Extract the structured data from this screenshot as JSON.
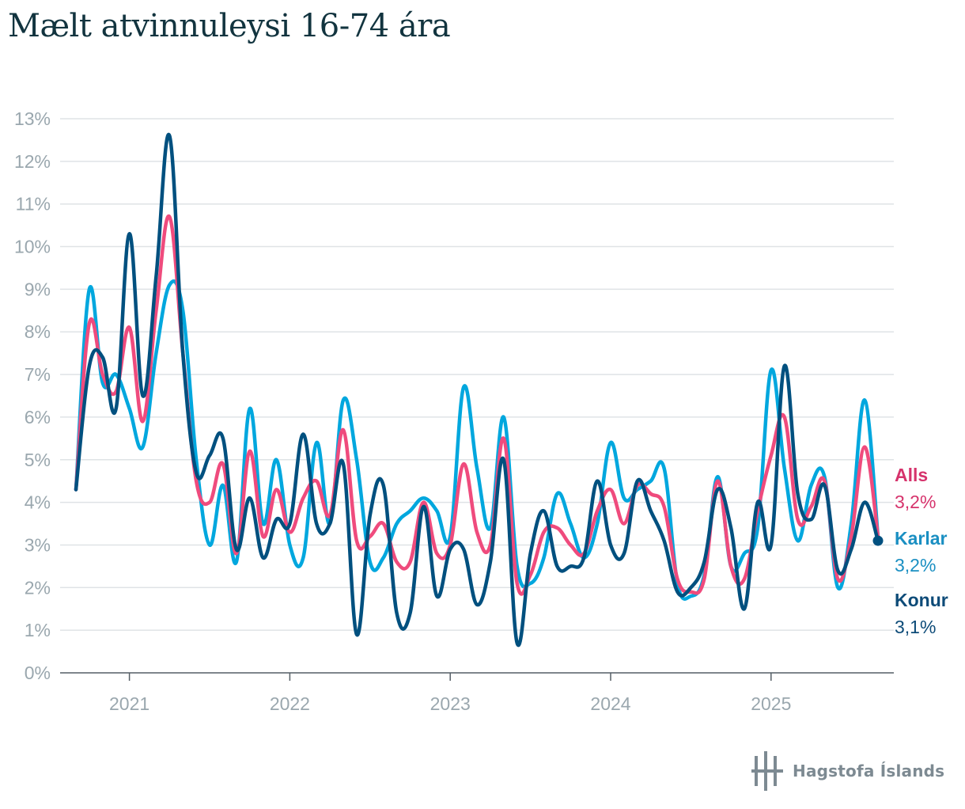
{
  "title": "Mælt atvinnuleysi 16-74 ára",
  "brand": {
    "name": "Hagstofa Íslands",
    "logo_icon": "hagstofa-logo-icon"
  },
  "chart_data": {
    "type": "line",
    "title": "Mælt atvinnuleysi 16-74 ára",
    "xlabel": "",
    "ylabel": "",
    "ylim": [
      0,
      13
    ],
    "y_ticks": [
      0,
      1,
      2,
      3,
      4,
      5,
      6,
      7,
      8,
      9,
      10,
      11,
      12,
      13
    ],
    "y_tick_labels": [
      "0%",
      "1%",
      "2%",
      "3%",
      "4%",
      "5%",
      "6%",
      "7%",
      "8%",
      "9%",
      "10%",
      "11%",
      "12%",
      "13%"
    ],
    "x_tick_labels": [
      "2021",
      "2022",
      "2023",
      "2024",
      "2025"
    ],
    "x_start": "2020-09",
    "grid": "horizontal",
    "legend": "right-end labels",
    "series": [
      {
        "name": "Karlar",
        "color": "#00a7de",
        "end_value_label": "3,2%",
        "values": [
          4.3,
          9.0,
          6.8,
          7.0,
          6.2,
          5.3,
          7.5,
          9.1,
          8.5,
          5.0,
          3.0,
          4.4,
          2.6,
          6.2,
          3.5,
          5.0,
          3.0,
          2.7,
          5.4,
          3.5,
          6.4,
          5.0,
          2.6,
          2.7,
          3.5,
          3.8,
          4.1,
          3.8,
          3.2,
          6.7,
          4.8,
          3.4,
          6.0,
          2.5,
          2.1,
          2.7,
          4.2,
          3.5,
          2.7,
          3.5,
          5.4,
          4.1,
          4.3,
          4.5,
          4.8,
          2.1,
          1.8,
          2.3,
          4.6,
          2.5,
          2.8,
          3.4,
          7.1,
          4.8,
          3.1,
          4.4,
          4.6,
          2.0,
          3.5,
          6.4,
          3.2
        ]
      },
      {
        "name": "Alls",
        "color": "#ef4b7d",
        "end_value_label": "3,2%",
        "values": [
          4.3,
          8.2,
          7.0,
          6.6,
          8.1,
          5.9,
          8.5,
          10.7,
          7.5,
          4.5,
          4.0,
          4.9,
          2.8,
          5.2,
          3.2,
          4.3,
          3.3,
          4.1,
          4.5,
          3.7,
          5.7,
          3.1,
          3.2,
          3.5,
          2.6,
          2.6,
          4.0,
          2.8,
          3.0,
          4.9,
          3.3,
          3.0,
          5.5,
          2.1,
          2.3,
          3.3,
          3.4,
          3.0,
          2.8,
          3.8,
          4.3,
          3.5,
          4.4,
          4.2,
          3.9,
          2.2,
          1.9,
          2.2,
          4.5,
          2.5,
          2.2,
          3.8,
          5.1,
          6.0,
          3.6,
          3.9,
          4.5,
          2.2,
          3.2,
          5.3,
          3.2
        ]
      },
      {
        "name": "Konur",
        "color": "#00507f",
        "end_value_label": "3,1%",
        "values": [
          4.3,
          7.2,
          7.4,
          6.2,
          10.3,
          6.5,
          9.3,
          12.6,
          7.5,
          4.7,
          5.1,
          5.5,
          2.9,
          4.1,
          2.7,
          3.6,
          3.5,
          5.6,
          3.5,
          3.5,
          4.9,
          0.9,
          3.7,
          4.4,
          1.4,
          1.4,
          3.9,
          1.8,
          2.9,
          2.9,
          1.6,
          2.6,
          5.0,
          0.7,
          2.8,
          3.8,
          2.5,
          2.5,
          2.7,
          4.5,
          3.0,
          2.8,
          4.5,
          3.8,
          3.1,
          1.9,
          2.0,
          2.6,
          4.3,
          3.4,
          1.5,
          4.0,
          3.0,
          7.2,
          4.2,
          3.6,
          4.4,
          2.4,
          2.9,
          4.0,
          3.1
        ]
      }
    ]
  }
}
